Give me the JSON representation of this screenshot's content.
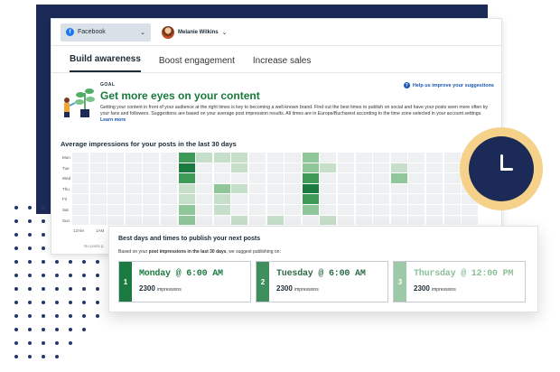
{
  "topbar": {
    "account_label": "Facebook",
    "user_name": "Melanie Wilkins"
  },
  "tabs": [
    {
      "label": "Build awareness",
      "active": true
    },
    {
      "label": "Boost engagement",
      "active": false
    },
    {
      "label": "Increase sales",
      "active": false
    }
  ],
  "goal": {
    "label": "GOAL",
    "title": "Get more eyes on your content",
    "body": "Getting your content in front of your audience at the right times is key to becoming a well-known brand. Find out the best times to publish on social and have your posts seen more often by your fans and followers. Suggestions are based on your average post impression results. All times are in Europe/Bucharest according to the time zone selected in your account settings.",
    "learn_more": "Learn more",
    "help_link": "Help us improve your suggestions"
  },
  "heatmap": {
    "title": "Average impressions for your posts in the last 30 days",
    "days": [
      "Mon",
      "Tue",
      "Wed",
      "Thu",
      "Fri",
      "Sat",
      "Sun"
    ],
    "hours": [
      "12AM",
      "1AM"
    ],
    "no_posts": "No posts p",
    "levels": [
      [
        0,
        0,
        0,
        0,
        0,
        0,
        3,
        1,
        1,
        1,
        0,
        0,
        0,
        2,
        0,
        0,
        0,
        0,
        0,
        0,
        0,
        0,
        0
      ],
      [
        0,
        0,
        0,
        0,
        0,
        0,
        4,
        0,
        0,
        1,
        0,
        0,
        0,
        2,
        1,
        0,
        0,
        0,
        1,
        0,
        0,
        0,
        0
      ],
      [
        0,
        0,
        0,
        0,
        0,
        0,
        3,
        0,
        0,
        0,
        0,
        0,
        0,
        3,
        0,
        0,
        0,
        0,
        2,
        0,
        0,
        0,
        0
      ],
      [
        0,
        0,
        0,
        0,
        0,
        0,
        1,
        0,
        2,
        1,
        0,
        0,
        0,
        4,
        0,
        0,
        0,
        0,
        0,
        0,
        0,
        0,
        0
      ],
      [
        0,
        0,
        0,
        0,
        0,
        0,
        1,
        0,
        1,
        0,
        0,
        0,
        0,
        3,
        0,
        0,
        0,
        0,
        0,
        0,
        0,
        0,
        0
      ],
      [
        0,
        0,
        0,
        0,
        0,
        0,
        2,
        0,
        1,
        0,
        0,
        0,
        0,
        2,
        0,
        0,
        0,
        0,
        0,
        0,
        0,
        0,
        0
      ],
      [
        0,
        0,
        0,
        0,
        0,
        0,
        2,
        0,
        0,
        1,
        0,
        1,
        0,
        0,
        1,
        0,
        0,
        0,
        0,
        0,
        0,
        0,
        0
      ]
    ],
    "colors": [
      "#eef0f2",
      "#c6dfca",
      "#8fc79b",
      "#3f9a57",
      "#1b7a3f"
    ]
  },
  "suggestions": {
    "title": "Best days and times to publish your next posts",
    "subtitle_prefix": "Based on your ",
    "subtitle_bold": "post impressions in the last 30 days",
    "subtitle_suffix": ", we suggest publishing on:",
    "slots": [
      {
        "rank": "1",
        "time": "Monday @ 6:00 AM",
        "impressions": "2300",
        "impressions_label": "impressions"
      },
      {
        "rank": "2",
        "time": "Tuesday @ 6:00 AM",
        "impressions": "2300",
        "impressions_label": "impressions"
      },
      {
        "rank": "3",
        "time": "Thursday @ 12:00 PM",
        "impressions": "2300",
        "impressions_label": "impressions"
      }
    ]
  }
}
